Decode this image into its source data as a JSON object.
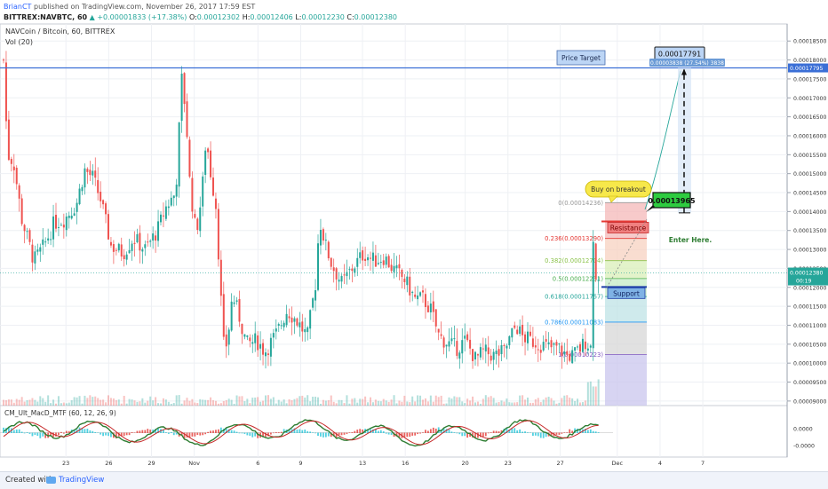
{
  "header": {
    "user": "BrianCT",
    "published": " published on TradingView.com, November 26, 2017 17:59 EST",
    "symbol_line": "BITTREX:NAVBTC, 60",
    "change": "▲ +0.00001833 (+17.38%)",
    "ohlc": [
      {
        "k": "O:",
        "v": "0.00012302"
      },
      {
        "k": "H:",
        "v": "0.00012406"
      },
      {
        "k": "L:",
        "v": "0.00012230"
      },
      {
        "k": "C:",
        "v": "0.00012380"
      }
    ]
  },
  "legend": {
    "title": "NAVCoin / Bitcoin, 60, BITTREX",
    "vol": "Vol (20)",
    "indicator": "CM_Ult_MacD_MTF (60, 12, 26, 9)"
  },
  "colors": {
    "up": "#26a69a",
    "down": "#ef5350",
    "hline": "#3b6fd6",
    "annotation_bg": "#bcd5f5",
    "callout": "#f7e84a",
    "green_label": "#2ecc40"
  },
  "chart_data": {
    "type": "candlestick",
    "y_range": [
      8.88e-05,
      0.0001895
    ],
    "price_axis_ticks": [
      "0.00018500",
      "0.00018000",
      "0.00017500",
      "0.00017000",
      "0.00016500",
      "0.00016000",
      "0.00015500",
      "0.00015000",
      "0.00014500",
      "0.00014000",
      "0.00013500",
      "0.00013000",
      "0.00012500",
      "0.00012000",
      "0.00011500",
      "0.00011000",
      "0.00010500",
      "0.00010000",
      "0.00009500",
      "0.00009000"
    ],
    "price_axis_values": [
      0.000185,
      0.00018,
      0.000175,
      0.00017,
      0.000165,
      0.00016,
      0.000155,
      0.00015,
      0.000145,
      0.00014,
      0.000135,
      0.00013,
      0.000125,
      0.00012,
      0.000115,
      0.00011,
      0.000105,
      0.0001,
      9.5e-05,
      9e-05
    ],
    "x_axis_labels": [
      "23",
      "26",
      "29",
      "Nov",
      "6",
      "9",
      "13",
      "16",
      "20",
      "23",
      "27",
      "Dec",
      "4",
      "7"
    ],
    "x_axis_index": [
      60,
      105,
      150,
      195,
      262,
      307,
      372,
      417,
      480,
      525,
      580,
      640,
      685,
      730
    ],
    "price_path": [
      [
        0,
        0.00018
      ],
      [
        4,
        0.000155
      ],
      [
        10,
        0.000153
      ],
      [
        18,
        0.000138
      ],
      [
        30,
        0.000127
      ],
      [
        40,
        0.000131
      ],
      [
        50,
        0.000137
      ],
      [
        60,
        0.000138
      ],
      [
        72,
        0.000142
      ],
      [
        80,
        0.000151
      ],
      [
        88,
        0.000149
      ],
      [
        96,
        0.000143
      ],
      [
        106,
        0.000131
      ],
      [
        118,
        0.000129
      ],
      [
        128,
        0.000133
      ],
      [
        140,
        0.00013
      ],
      [
        152,
        0.000135
      ],
      [
        160,
        0.000141
      ],
      [
        170,
        0.000145
      ],
      [
        176,
        0.000175
      ],
      [
        180,
        0.000166
      ],
      [
        184,
        0.000147
      ],
      [
        190,
        0.000134
      ],
      [
        196,
        0.000145
      ],
      [
        200,
        0.00016
      ],
      [
        204,
        0.000151
      ],
      [
        210,
        0.000141
      ],
      [
        214,
        0.00012
      ],
      [
        218,
        0.000102
      ],
      [
        222,
        0.000108
      ],
      [
        226,
        0.000118
      ],
      [
        232,
        0.000113
      ],
      [
        240,
        0.000105
      ],
      [
        250,
        0.000106
      ],
      [
        258,
        0.000103
      ],
      [
        270,
        0.000108
      ],
      [
        280,
        0.000114
      ],
      [
        290,
        0.000111
      ],
      [
        300,
        0.000107
      ],
      [
        308,
        0.000121
      ],
      [
        312,
        0.000138
      ],
      [
        318,
        0.000131
      ],
      [
        324,
        0.000126
      ],
      [
        334,
        0.000121
      ],
      [
        344,
        0.000125
      ],
      [
        356,
        0.000129
      ],
      [
        366,
        0.000127
      ],
      [
        376,
        0.000128
      ],
      [
        384,
        0.000125
      ],
      [
        396,
        0.000122
      ],
      [
        406,
        0.000117
      ],
      [
        414,
        0.000117
      ],
      [
        422,
        0.000114
      ],
      [
        430,
        0.000107
      ],
      [
        440,
        0.000105
      ],
      [
        448,
        0.000104
      ],
      [
        456,
        0.000106
      ],
      [
        466,
        0.000101
      ],
      [
        474,
        0.000103
      ],
      [
        484,
        0.000102
      ],
      [
        494,
        0.000103
      ],
      [
        506,
        0.00011
      ],
      [
        512,
        0.000107
      ],
      [
        520,
        0.000106
      ],
      [
        530,
        0.000105
      ],
      [
        540,
        0.000104
      ],
      [
        548,
        0.000104
      ],
      [
        556,
        0.000102
      ],
      [
        562,
        0.000102
      ],
      [
        570,
        0.000104
      ],
      [
        575,
        0.000106
      ],
      [
        580,
        0.000104
      ],
      [
        582,
        0.000135
      ],
      [
        585,
        0.000121
      ],
      [
        588,
        0.000124
      ],
      [
        590,
        0.0001238
      ]
    ],
    "horizontal_line": {
      "price": 0.0001779,
      "label": "0.00017795"
    },
    "current_price": {
      "label": "0.00012380",
      "sublabel": "00:19",
      "price": 0.0001238
    },
    "fibonacci": [
      {
        "ratio": "0",
        "label": "0(0.00014236)",
        "price": 0.00014236
      },
      {
        "ratio": "0.236",
        "label": "0.236(0.00013290)",
        "price": 0.0001329
      },
      {
        "ratio": "0.382",
        "label": "0.382(0.00012704)",
        "price": 0.00012704
      },
      {
        "ratio": "0.5",
        "label": "0.5(0.00012231)",
        "price": 0.00012231
      },
      {
        "ratio": "0.618",
        "label": "0.618(0.00011757)",
        "price": 0.00011757
      },
      {
        "ratio": "0.786",
        "label": "0.786(0.00011083)",
        "price": 0.00011083
      },
      {
        "ratio": "1",
        "label": "1(0.00010223)",
        "price": 0.00010223
      }
    ],
    "fib_colors": [
      "#f4b8b8",
      "#f7d2c0",
      "#d9efb8",
      "#c6ecc6",
      "#bfe3e6",
      "#d7d7d7",
      "#c9c6ee"
    ],
    "fib_line_colors": [
      "#999999",
      "#e53935",
      "#8bc34a",
      "#4caf50",
      "#26a69a",
      "#2196f3",
      "#7e57c2"
    ],
    "resistance": {
      "label": "Resistance",
      "price": 0.0001374
    },
    "support": {
      "label": "Support",
      "price": 0.0001201
    },
    "price_target": {
      "label": "Price Target"
    },
    "target_box": {
      "value": "0.00017791",
      "sub": "0.00003838 (27.54%) 3838"
    },
    "entry_box": {
      "value": "0.00013965",
      "price": 0.00013965
    },
    "buy_callout": "Buy on breakout",
    "enter_here": "Enter Here.",
    "macd_ticks": [
      "0.0000",
      "-0.0000"
    ],
    "macd_tick_values": [
      0.5,
      -1.6
    ]
  }
}
